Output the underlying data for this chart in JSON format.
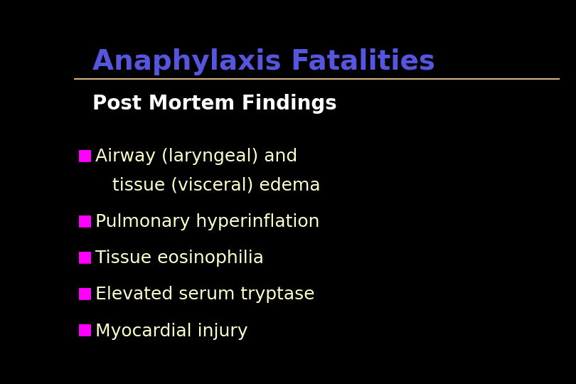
{
  "title": "Anaphylaxis Fatalities",
  "subtitle": "Post Mortem Findings",
  "title_color": "#5555dd",
  "subtitle_color": "#ffffff",
  "background_color": "#000000",
  "line_color": "#d4b483",
  "bullet_color": "#ff00ff",
  "bullet_text_color": "#ffffcc",
  "bullet_items": [
    [
      "Airway (laryngeal) and",
      "   tissue (visceral) edema"
    ],
    [
      "Pulmonary hyperinflation"
    ],
    [
      "Tissue eosinophilia"
    ],
    [
      "Elevated serum tryptase"
    ],
    [
      "Myocardial injury"
    ]
  ],
  "title_fontsize": 28,
  "subtitle_fontsize": 20,
  "bullet_fontsize": 18
}
